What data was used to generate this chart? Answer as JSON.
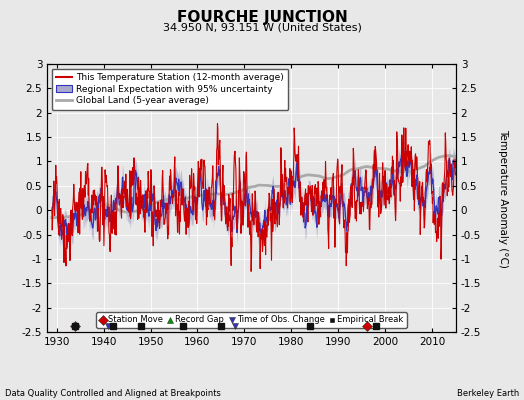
{
  "title": "FOURCHE JUNCTION",
  "subtitle": "34.950 N, 93.151 W (United States)",
  "ylabel": "Temperature Anomaly (°C)",
  "xlabel_left": "Data Quality Controlled and Aligned at Breakpoints",
  "xlabel_right": "Berkeley Earth",
  "ylim": [
    -2.5,
    3.0
  ],
  "xlim": [
    1928,
    2015
  ],
  "yticks": [
    -2.5,
    -2,
    -1.5,
    -1,
    -0.5,
    0,
    0.5,
    1,
    1.5,
    2,
    2.5,
    3
  ],
  "xticks": [
    1930,
    1940,
    1950,
    1960,
    1970,
    1980,
    1990,
    2000,
    2010
  ],
  "background_color": "#e8e8e8",
  "plot_bg_color": "#e8e8e8",
  "red_color": "#cc0000",
  "blue_color": "#3333bb",
  "blue_fill_color": "#aaaacc",
  "gray_color": "#aaaaaa",
  "legend_items": [
    "This Temperature Station (12-month average)",
    "Regional Expectation with 95% uncertainty",
    "Global Land (5-year average)"
  ],
  "marker_events": {
    "station_move": [
      1934,
      1996
    ],
    "record_gap": [],
    "obs_change": [
      1941,
      1957,
      1965,
      1968,
      1984
    ],
    "empirical_break": [
      1934,
      1942,
      1948,
      1957,
      1965,
      1984,
      1998
    ]
  },
  "seed": 42
}
